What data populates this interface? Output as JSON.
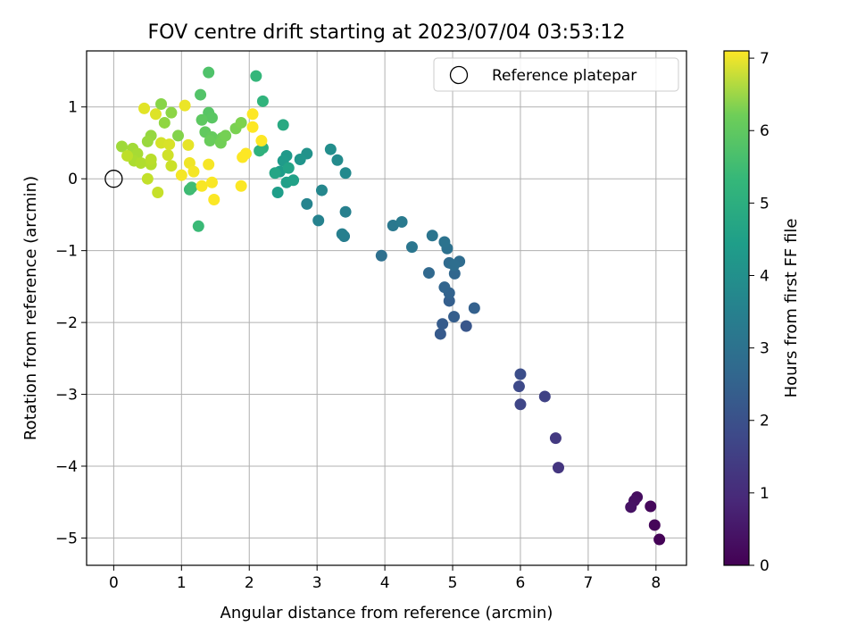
{
  "chart_data": {
    "type": "scatter",
    "title": "FOV centre drift starting at 2023/07/04 03:53:12",
    "xlabel": "Angular distance from reference (arcmin)",
    "ylabel": "Rotation from reference (arcmin)",
    "xlim": [
      -0.4,
      8.45
    ],
    "ylim": [
      -5.38,
      1.78
    ],
    "xticks": [
      0,
      1,
      2,
      3,
      4,
      5,
      6,
      7,
      8
    ],
    "yticks": [
      1,
      0,
      -1,
      -2,
      -3,
      -4,
      -5
    ],
    "xtick_labels": [
      "0",
      "1",
      "2",
      "3",
      "4",
      "5",
      "6",
      "7",
      "8"
    ],
    "ytick_labels": [
      "1",
      "0",
      "−1",
      "−2",
      "−3",
      "−4",
      "−5"
    ],
    "grid": true,
    "legend": {
      "position": "top-right",
      "entries": [
        "Reference platepar"
      ]
    },
    "reference_point": {
      "label": "Reference platepar",
      "x": 0,
      "y": 0
    },
    "colorbar": {
      "label": "Hours from first FF file",
      "colormap": "viridis",
      "range": [
        0,
        7.1
      ],
      "ticks": [
        0,
        1,
        2,
        3,
        4,
        5,
        6,
        7
      ],
      "tick_labels": [
        "0",
        "1",
        "2",
        "3",
        "4",
        "5",
        "6",
        "7"
      ]
    },
    "series": [
      {
        "points": [
          {
            "x": 8.05,
            "y": -5.02,
            "c": 0.05
          },
          {
            "x": 7.98,
            "y": -4.82,
            "c": 0.1
          },
          {
            "x": 7.92,
            "y": -4.56,
            "c": 0.15
          },
          {
            "x": 7.72,
            "y": -4.43,
            "c": 0.25
          },
          {
            "x": 7.68,
            "y": -4.48,
            "c": 0.3
          },
          {
            "x": 7.63,
            "y": -4.57,
            "c": 0.35
          },
          {
            "x": 6.56,
            "y": -4.02,
            "c": 1.1
          },
          {
            "x": 6.52,
            "y": -3.61,
            "c": 1.2
          },
          {
            "x": 6.36,
            "y": -3.03,
            "c": 1.4
          },
          {
            "x": 6.0,
            "y": -3.14,
            "c": 1.5
          },
          {
            "x": 5.98,
            "y": -2.89,
            "c": 1.6
          },
          {
            "x": 6.0,
            "y": -2.72,
            "c": 1.7
          },
          {
            "x": 5.2,
            "y": -2.05,
            "c": 1.9
          },
          {
            "x": 4.82,
            "y": -2.16,
            "c": 2.0
          },
          {
            "x": 4.85,
            "y": -2.02,
            "c": 2.05
          },
          {
            "x": 5.02,
            "y": -1.92,
            "c": 2.1
          },
          {
            "x": 4.95,
            "y": -1.7,
            "c": 2.15
          },
          {
            "x": 5.32,
            "y": -1.8,
            "c": 2.2
          },
          {
            "x": 4.95,
            "y": -1.59,
            "c": 2.25
          },
          {
            "x": 4.88,
            "y": -1.51,
            "c": 2.3
          },
          {
            "x": 5.03,
            "y": -1.32,
            "c": 2.35
          },
          {
            "x": 4.65,
            "y": -1.31,
            "c": 2.4
          },
          {
            "x": 4.95,
            "y": -1.17,
            "c": 2.45
          },
          {
            "x": 5.1,
            "y": -1.15,
            "c": 2.5
          },
          {
            "x": 5.02,
            "y": -1.2,
            "c": 2.55
          },
          {
            "x": 3.95,
            "y": -1.07,
            "c": 2.6
          },
          {
            "x": 4.92,
            "y": -0.97,
            "c": 2.65
          },
          {
            "x": 4.88,
            "y": -0.88,
            "c": 2.7
          },
          {
            "x": 4.7,
            "y": -0.79,
            "c": 2.75
          },
          {
            "x": 4.4,
            "y": -0.95,
            "c": 2.8
          },
          {
            "x": 4.12,
            "y": -0.65,
            "c": 2.85
          },
          {
            "x": 4.25,
            "y": -0.6,
            "c": 2.9
          },
          {
            "x": 3.4,
            "y": -0.8,
            "c": 3.0
          },
          {
            "x": 3.37,
            "y": -0.77,
            "c": 3.05
          },
          {
            "x": 3.42,
            "y": -0.46,
            "c": 3.1
          },
          {
            "x": 3.02,
            "y": -0.58,
            "c": 3.15
          },
          {
            "x": 2.85,
            "y": -0.35,
            "c": 3.2
          },
          {
            "x": 3.07,
            "y": -0.16,
            "c": 3.3
          },
          {
            "x": 3.42,
            "y": 0.08,
            "c": 3.35
          },
          {
            "x": 3.3,
            "y": 0.26,
            "c": 3.4
          },
          {
            "x": 3.2,
            "y": 0.41,
            "c": 3.5
          },
          {
            "x": 2.85,
            "y": 0.35,
            "c": 3.6
          },
          {
            "x": 2.75,
            "y": 0.27,
            "c": 3.7
          },
          {
            "x": 2.55,
            "y": 0.32,
            "c": 3.8
          },
          {
            "x": 2.5,
            "y": 0.25,
            "c": 3.85
          },
          {
            "x": 2.45,
            "y": 0.1,
            "c": 3.9
          },
          {
            "x": 2.42,
            "y": -0.19,
            "c": 3.95
          },
          {
            "x": 2.55,
            "y": -0.05,
            "c": 4.0
          },
          {
            "x": 2.65,
            "y": -0.02,
            "c": 4.05
          },
          {
            "x": 2.58,
            "y": 0.15,
            "c": 4.1
          },
          {
            "x": 2.38,
            "y": 0.08,
            "c": 4.15
          },
          {
            "x": 2.5,
            "y": 0.75,
            "c": 4.3
          },
          {
            "x": 2.2,
            "y": 0.43,
            "c": 4.5
          },
          {
            "x": 2.15,
            "y": 0.39,
            "c": 4.55
          },
          {
            "x": 2.2,
            "y": 1.08,
            "c": 4.6
          },
          {
            "x": 2.1,
            "y": 1.43,
            "c": 4.7
          },
          {
            "x": 1.25,
            "y": -0.66,
            "c": 4.8
          },
          {
            "x": 1.12,
            "y": -0.15,
            "c": 4.85
          },
          {
            "x": 1.15,
            "y": -0.12,
            "c": 4.9
          },
          {
            "x": 1.4,
            "y": 1.48,
            "c": 5.1
          },
          {
            "x": 1.28,
            "y": 1.17,
            "c": 5.15
          },
          {
            "x": 1.4,
            "y": 0.92,
            "c": 5.2
          },
          {
            "x": 1.45,
            "y": 0.85,
            "c": 5.25
          },
          {
            "x": 1.3,
            "y": 0.82,
            "c": 5.3
          },
          {
            "x": 1.35,
            "y": 0.65,
            "c": 5.35
          },
          {
            "x": 1.45,
            "y": 0.58,
            "c": 5.4
          },
          {
            "x": 1.42,
            "y": 0.53,
            "c": 5.45
          },
          {
            "x": 1.6,
            "y": 0.57,
            "c": 5.5
          },
          {
            "x": 1.58,
            "y": 0.5,
            "c": 5.55
          },
          {
            "x": 1.65,
            "y": 0.6,
            "c": 5.6
          },
          {
            "x": 1.8,
            "y": 0.7,
            "c": 5.65
          },
          {
            "x": 1.88,
            "y": 0.78,
            "c": 5.7
          },
          {
            "x": 0.95,
            "y": 0.6,
            "c": 5.75
          },
          {
            "x": 0.7,
            "y": 1.04,
            "c": 5.8
          },
          {
            "x": 0.85,
            "y": 0.92,
            "c": 5.85
          },
          {
            "x": 0.75,
            "y": 0.78,
            "c": 5.9
          },
          {
            "x": 0.55,
            "y": 0.6,
            "c": 5.95
          },
          {
            "x": 0.5,
            "y": 0.52,
            "c": 6.0
          },
          {
            "x": 0.12,
            "y": 0.45,
            "c": 6.05
          },
          {
            "x": 0.28,
            "y": 0.42,
            "c": 6.1
          },
          {
            "x": 0.35,
            "y": 0.35,
            "c": 6.15
          },
          {
            "x": 0.3,
            "y": 0.25,
            "c": 6.2
          },
          {
            "x": 0.4,
            "y": 0.22,
            "c": 6.25
          },
          {
            "x": 0.55,
            "y": 0.2,
            "c": 6.3
          },
          {
            "x": 0.55,
            "y": 0.27,
            "c": 6.35
          },
          {
            "x": 0.2,
            "y": 0.32,
            "c": 6.4
          },
          {
            "x": 0.5,
            "y": 0.0,
            "c": 6.45
          },
          {
            "x": 0.65,
            "y": -0.19,
            "c": 6.5
          },
          {
            "x": 0.85,
            "y": 0.18,
            "c": 6.55
          },
          {
            "x": 0.8,
            "y": 0.33,
            "c": 6.6
          },
          {
            "x": 0.7,
            "y": 0.5,
            "c": 6.65
          },
          {
            "x": 0.82,
            "y": 0.48,
            "c": 6.7
          },
          {
            "x": 0.62,
            "y": 0.9,
            "c": 6.75
          },
          {
            "x": 0.45,
            "y": 0.98,
            "c": 6.8
          },
          {
            "x": 1.1,
            "y": 0.47,
            "c": 6.85
          },
          {
            "x": 1.05,
            "y": 1.02,
            "c": 6.9
          },
          {
            "x": 1.12,
            "y": 0.22,
            "c": 6.95
          },
          {
            "x": 1.18,
            "y": 0.1,
            "c": 7.0
          },
          {
            "x": 1.0,
            "y": 0.05,
            "c": 7.0
          },
          {
            "x": 1.4,
            "y": 0.2,
            "c": 7.02
          },
          {
            "x": 1.3,
            "y": -0.1,
            "c": 7.04
          },
          {
            "x": 1.45,
            "y": -0.05,
            "c": 7.06
          },
          {
            "x": 1.48,
            "y": -0.29,
            "c": 7.08
          },
          {
            "x": 1.88,
            "y": -0.1,
            "c": 7.08
          },
          {
            "x": 1.9,
            "y": 0.3,
            "c": 7.09
          },
          {
            "x": 1.95,
            "y": 0.35,
            "c": 7.09
          },
          {
            "x": 2.05,
            "y": 0.72,
            "c": 7.1
          },
          {
            "x": 2.05,
            "y": 0.9,
            "c": 7.1
          },
          {
            "x": 2.18,
            "y": 0.53,
            "c": 7.1
          }
        ]
      }
    ]
  }
}
